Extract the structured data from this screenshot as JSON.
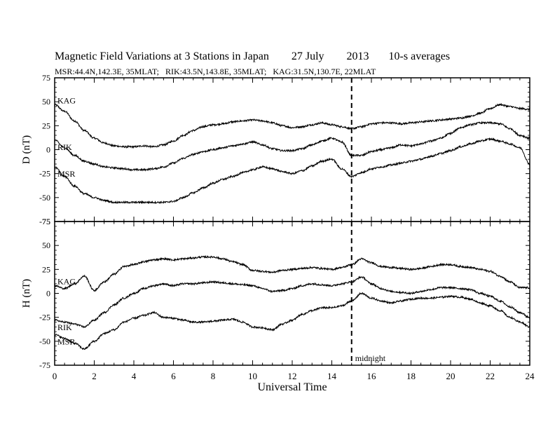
{
  "chart_data": [
    {
      "type": "line",
      "title": "Magnetic Field Variations at 3 Stations in Japan        27 July        2013       10-s averages",
      "subtitle": "MSR:44.4N,142.3E, 35MLAT;   RIK:43.5N,143.8E, 35MLAT;   KAG:31.5N,130.7E, 22MLAT",
      "ylabel": "D (nT)",
      "xlabel": "",
      "xlim": [
        0,
        24
      ],
      "ylim": [
        -75,
        75
      ],
      "yticks": [
        "75",
        "50",
        "25",
        "0",
        "-25",
        "-50",
        "-75"
      ],
      "x": [
        0,
        0.5,
        1,
        1.5,
        2,
        2.5,
        3,
        3.5,
        4,
        4.5,
        5,
        5.5,
        6,
        6.5,
        7,
        7.5,
        8,
        8.5,
        9,
        9.5,
        10,
        10.5,
        11,
        11.5,
        12,
        12.5,
        13,
        13.5,
        14,
        14.5,
        15,
        15.5,
        16,
        16.5,
        17,
        17.5,
        18,
        18.5,
        19,
        19.5,
        20,
        20.5,
        21,
        21.5,
        22,
        22.5,
        23,
        23.5,
        24
      ],
      "series": [
        {
          "name": "KAG",
          "values": [
            47,
            40,
            30,
            20,
            12,
            7,
            4,
            3,
            3,
            4,
            3,
            5,
            9,
            15,
            20,
            24,
            26,
            27,
            29,
            30,
            31,
            30,
            28,
            25,
            23,
            24,
            26,
            28,
            26,
            24,
            22,
            24,
            27,
            28,
            28,
            27,
            28,
            29,
            30,
            31,
            32,
            33,
            35,
            38,
            43,
            47,
            45,
            43,
            42
          ]
        },
        {
          "name": "RIK",
          "values": [
            10,
            2,
            -6,
            -12,
            -15,
            -18,
            -19,
            -20,
            -21,
            -21,
            -20,
            -18,
            -14,
            -9,
            -5,
            -2,
            0,
            2,
            4,
            6,
            8,
            5,
            1,
            -1,
            -1,
            1,
            5,
            9,
            12,
            8,
            -6,
            -6,
            -2,
            0,
            2,
            5,
            4,
            6,
            9,
            12,
            17,
            23,
            26,
            28,
            28,
            27,
            22,
            15,
            12
          ]
        },
        {
          "name": "MSR",
          "values": [
            -18,
            -28,
            -38,
            -46,
            -50,
            -53,
            -55,
            -55,
            -55,
            -55,
            -55,
            -55,
            -54,
            -50,
            -45,
            -40,
            -35,
            -31,
            -28,
            -24,
            -21,
            -18,
            -20,
            -23,
            -25,
            -22,
            -17,
            -12,
            -10,
            -20,
            -28,
            -24,
            -20,
            -18,
            -16,
            -14,
            -12,
            -10,
            -7,
            -4,
            -1,
            3,
            6,
            9,
            11,
            9,
            6,
            2,
            -15
          ]
        }
      ],
      "annotation": {
        "label": "midnight",
        "x": 15
      }
    },
    {
      "type": "line",
      "ylabel": "H (nT)",
      "xlabel": "Universal Time",
      "xlim": [
        0,
        24
      ],
      "ylim": [
        -75,
        75
      ],
      "yticks": [
        "75",
        "50",
        "25",
        "0",
        "-25",
        "-50",
        "-75"
      ],
      "xticks": [
        "0",
        "2",
        "4",
        "6",
        "8",
        "10",
        "12",
        "14",
        "16",
        "18",
        "20",
        "22",
        "24"
      ],
      "x": [
        0,
        0.5,
        1,
        1.5,
        2,
        2.5,
        3,
        3.5,
        4,
        4.5,
        5,
        5.5,
        6,
        6.5,
        7,
        7.5,
        8,
        8.5,
        9,
        9.5,
        10,
        10.5,
        11,
        11.5,
        12,
        12.5,
        13,
        13.5,
        14,
        14.5,
        15,
        15.5,
        16,
        16.5,
        17,
        17.5,
        18,
        18.5,
        19,
        19.5,
        20,
        20.5,
        21,
        21.5,
        22,
        22.5,
        23,
        23.5,
        24
      ],
      "series": [
        {
          "name": "KAG",
          "values": [
            8,
            5,
            10,
            18,
            3,
            12,
            20,
            28,
            30,
            33,
            35,
            36,
            35,
            36,
            37,
            38,
            38,
            36,
            33,
            30,
            24,
            23,
            22,
            24,
            25,
            26,
            27,
            26,
            25,
            27,
            30,
            36,
            32,
            28,
            27,
            26,
            25,
            26,
            28,
            30,
            30,
            28,
            27,
            25,
            23,
            18,
            12,
            6,
            6
          ]
        },
        {
          "name": "RIK",
          "values": [
            -28,
            -30,
            -32,
            -35,
            -28,
            -20,
            -12,
            -5,
            0,
            5,
            8,
            10,
            8,
            10,
            10,
            11,
            12,
            11,
            10,
            9,
            8,
            5,
            2,
            3,
            5,
            8,
            10,
            9,
            8,
            10,
            12,
            17,
            10,
            5,
            2,
            1,
            0,
            2,
            4,
            6,
            6,
            5,
            4,
            0,
            -3,
            -8,
            -14,
            -20,
            -25
          ]
        },
        {
          "name": "MSR",
          "values": [
            -43,
            -47,
            -52,
            -58,
            -50,
            -42,
            -38,
            -30,
            -26,
            -23,
            -20,
            -25,
            -26,
            -28,
            -30,
            -30,
            -29,
            -28,
            -27,
            -30,
            -35,
            -36,
            -38,
            -32,
            -28,
            -22,
            -18,
            -15,
            -15,
            -13,
            -8,
            0,
            -5,
            -8,
            -10,
            -8,
            -6,
            -5,
            -5,
            -4,
            -3,
            -4,
            -6,
            -10,
            -13,
            -18,
            -25,
            -30,
            -35
          ]
        }
      ],
      "annotation": {
        "label": "midnight",
        "x": 15
      }
    }
  ]
}
